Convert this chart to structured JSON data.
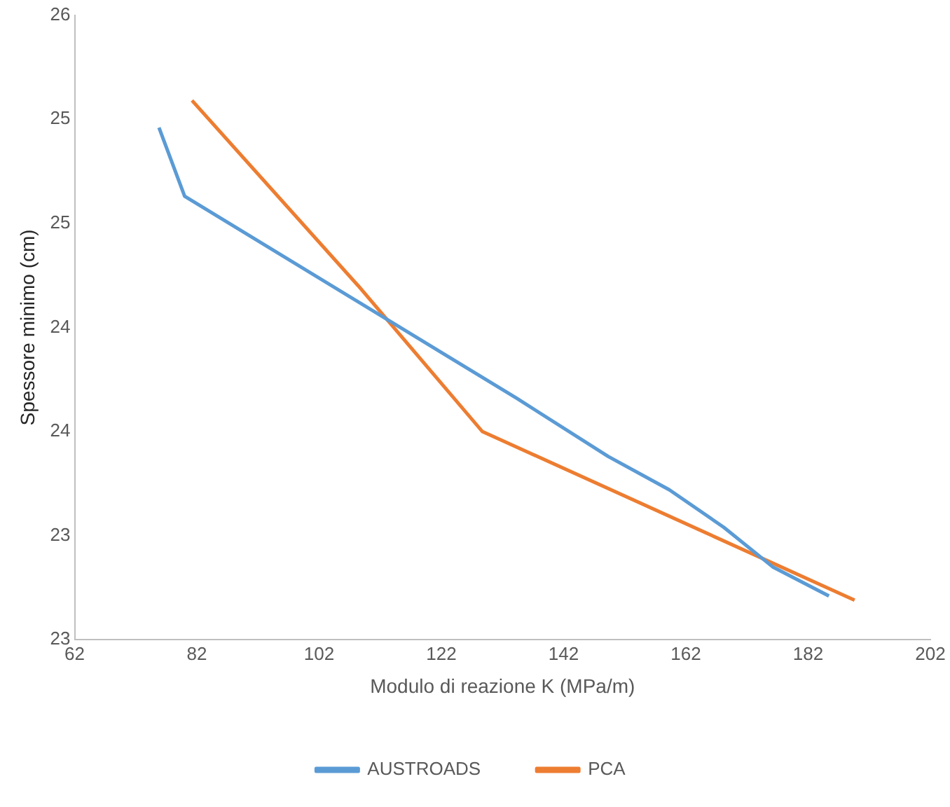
{
  "chart_data": {
    "type": "line",
    "xlabel": "Modulo di reazione K (MPa/m)",
    "ylabel": "Spessore minimo (cm)",
    "xlim": [
      62,
      202
    ],
    "xticks": [
      62,
      82,
      102,
      122,
      142,
      162,
      182,
      202
    ],
    "ylim": [
      22.5,
      25.5
    ],
    "yticks": [
      {
        "value": 22.5,
        "label": "23"
      },
      {
        "value": 23,
        "label": "23"
      },
      {
        "value": 23.5,
        "label": "24"
      },
      {
        "value": 24,
        "label": "24"
      },
      {
        "value": 24.5,
        "label": "25"
      },
      {
        "value": 25,
        "label": "25"
      },
      {
        "value": 25.5,
        "label": "26"
      }
    ],
    "grid": false,
    "legend": "bottom",
    "marker": "none",
    "line_style": "solid",
    "series": [
      {
        "name": "AUSTROADS",
        "color": "#5b9bd5",
        "x": [
          75.8,
          80.0,
          134.3,
          149.3,
          159.3,
          168.2,
          176.2,
          185.4
        ],
        "values": [
          24.96,
          24.63,
          23.66,
          23.38,
          23.22,
          23.04,
          22.85,
          22.71
        ]
      },
      {
        "name": "PCA",
        "color": "#ed7d31",
        "x": [
          81.2,
          108.4,
          128.7,
          189.6
        ],
        "values": [
          25.09,
          24.2,
          23.5,
          22.69
        ]
      }
    ]
  }
}
